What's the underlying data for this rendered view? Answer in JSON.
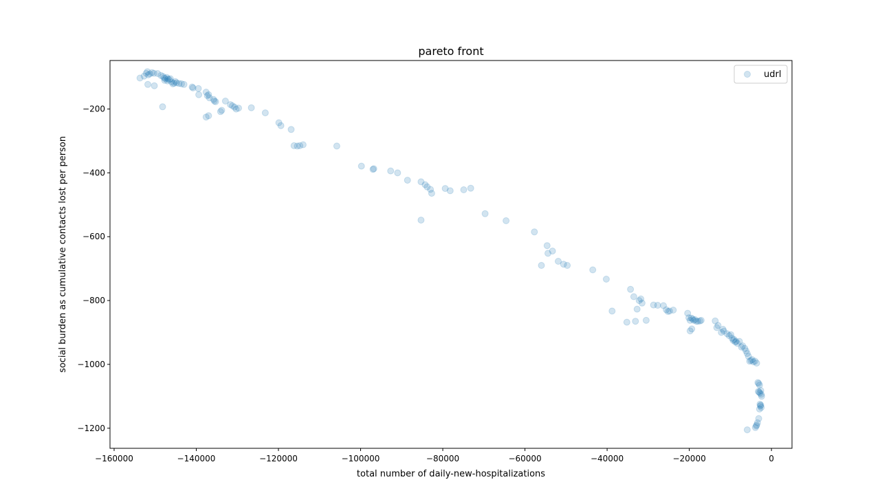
{
  "chart_data": {
    "type": "scatter",
    "title": "pareto front",
    "xlabel": "total number of daily-new-hospitalizations",
    "ylabel": "social burden as cumulative contacts lost per person",
    "xlim": [
      -161000,
      5000
    ],
    "ylim": [
      -1263,
      -48
    ],
    "xticks": [
      -160000,
      -140000,
      -120000,
      -100000,
      -80000,
      -60000,
      -40000,
      -20000,
      0
    ],
    "yticks": [
      -200,
      -400,
      -600,
      -800,
      -1000,
      -1200
    ],
    "grid": false,
    "legend": {
      "position": "top-right",
      "entries": [
        "udrl"
      ]
    },
    "series": [
      {
        "name": "udrl",
        "color": "#1f77b4",
        "alpha": 0.2,
        "points": [
          [
            -153700,
            -103
          ],
          [
            -152700,
            -97
          ],
          [
            -152200,
            -88
          ],
          [
            -151900,
            -83
          ],
          [
            -151700,
            -93
          ],
          [
            -151300,
            -90
          ],
          [
            -150800,
            -86
          ],
          [
            -150300,
            -88
          ],
          [
            -149400,
            -89
          ],
          [
            -148600,
            -95
          ],
          [
            -148100,
            -98
          ],
          [
            -147800,
            -103
          ],
          [
            -147500,
            -105
          ],
          [
            -147200,
            -101
          ],
          [
            -146900,
            -106
          ],
          [
            -146600,
            -108
          ],
          [
            -146300,
            -105
          ],
          [
            -146000,
            -115
          ],
          [
            -145700,
            -121
          ],
          [
            -145400,
            -119
          ],
          [
            -145100,
            -114
          ],
          [
            -144800,
            -118
          ],
          [
            -144200,
            -120
          ],
          [
            -143600,
            -121
          ],
          [
            -143000,
            -123
          ],
          [
            -147700,
            -110
          ],
          [
            -147000,
            -112
          ],
          [
            -151800,
            -123
          ],
          [
            -150200,
            -127
          ],
          [
            -148200,
            -193
          ],
          [
            -141000,
            -131
          ],
          [
            -140800,
            -134
          ],
          [
            -139500,
            -136
          ],
          [
            -139400,
            -155
          ],
          [
            -137600,
            -147
          ],
          [
            -137300,
            -158
          ],
          [
            -137000,
            -155
          ],
          [
            -136800,
            -165
          ],
          [
            -135800,
            -170
          ],
          [
            -135300,
            -177
          ],
          [
            -135600,
            -175
          ],
          [
            -137600,
            -225
          ],
          [
            -137000,
            -221
          ],
          [
            -134100,
            -208
          ],
          [
            -133800,
            -204
          ],
          [
            -132900,
            -175
          ],
          [
            -131700,
            -186
          ],
          [
            -131200,
            -190
          ],
          [
            -130700,
            -194
          ],
          [
            -130300,
            -200
          ],
          [
            -129700,
            -197
          ],
          [
            -126600,
            -196
          ],
          [
            -123200,
            -212
          ],
          [
            -119900,
            -243
          ],
          [
            -119400,
            -252
          ],
          [
            -116900,
            -264
          ],
          [
            -116200,
            -315
          ],
          [
            -115400,
            -316
          ],
          [
            -114800,
            -315
          ],
          [
            -114000,
            -312
          ],
          [
            -105800,
            -316
          ],
          [
            -99800,
            -379
          ],
          [
            -97000,
            -389
          ],
          [
            -96800,
            -387
          ],
          [
            -92700,
            -394
          ],
          [
            -91000,
            -400
          ],
          [
            -88600,
            -423
          ],
          [
            -85300,
            -428
          ],
          [
            -84300,
            -437
          ],
          [
            -83800,
            -444
          ],
          [
            -83000,
            -452
          ],
          [
            -82700,
            -464
          ],
          [
            -85300,
            -548
          ],
          [
            -79400,
            -449
          ],
          [
            -78200,
            -456
          ],
          [
            -74900,
            -453
          ],
          [
            -73200,
            -448
          ],
          [
            -69700,
            -528
          ],
          [
            -64600,
            -550
          ],
          [
            -57700,
            -585
          ],
          [
            -56000,
            -690
          ],
          [
            -54600,
            -628
          ],
          [
            -54400,
            -652
          ],
          [
            -53300,
            -645
          ],
          [
            -51900,
            -677
          ],
          [
            -50600,
            -686
          ],
          [
            -49700,
            -690
          ],
          [
            -43500,
            -704
          ],
          [
            -40200,
            -733
          ],
          [
            -38800,
            -833
          ],
          [
            -35200,
            -868
          ],
          [
            -34300,
            -765
          ],
          [
            -33500,
            -788
          ],
          [
            -33100,
            -865
          ],
          [
            -32700,
            -827
          ],
          [
            -32200,
            -800
          ],
          [
            -31800,
            -795
          ],
          [
            -31500,
            -808
          ],
          [
            -30500,
            -862
          ],
          [
            -28700,
            -814
          ],
          [
            -27700,
            -815
          ],
          [
            -26300,
            -816
          ],
          [
            -25600,
            -829
          ],
          [
            -25200,
            -834
          ],
          [
            -24800,
            -833
          ],
          [
            -23900,
            -830
          ],
          [
            -20400,
            -840
          ],
          [
            -20100,
            -854
          ],
          [
            -19800,
            -862
          ],
          [
            -19500,
            -855
          ],
          [
            -19200,
            -858
          ],
          [
            -18900,
            -862
          ],
          [
            -18600,
            -860
          ],
          [
            -18300,
            -865
          ],
          [
            -17900,
            -865
          ],
          [
            -17400,
            -864
          ],
          [
            -17100,
            -862
          ],
          [
            -19800,
            -895
          ],
          [
            -19400,
            -889
          ],
          [
            -13700,
            -864
          ],
          [
            -13300,
            -885
          ],
          [
            -13000,
            -878
          ],
          [
            -12200,
            -900
          ],
          [
            -11800,
            -890
          ],
          [
            -11600,
            -896
          ],
          [
            -10800,
            -904
          ],
          [
            -10300,
            -910
          ],
          [
            -9900,
            -907
          ],
          [
            -9600,
            -918
          ],
          [
            -9300,
            -925
          ],
          [
            -9100,
            -922
          ],
          [
            -8800,
            -930
          ],
          [
            -8600,
            -928
          ],
          [
            -8300,
            -934
          ],
          [
            -7800,
            -928
          ],
          [
            -7300,
            -946
          ],
          [
            -7000,
            -942
          ],
          [
            -6500,
            -950
          ],
          [
            -6200,
            -958
          ],
          [
            -5900,
            -966
          ],
          [
            -5600,
            -975
          ],
          [
            -5300,
            -990
          ],
          [
            -5000,
            -988
          ],
          [
            -4700,
            -985
          ],
          [
            -4400,
            -992
          ],
          [
            -4000,
            -990
          ],
          [
            -3600,
            -996
          ],
          [
            -3300,
            -1057
          ],
          [
            -3100,
            -1060
          ],
          [
            -2900,
            -1065
          ],
          [
            -3200,
            -1085
          ],
          [
            -3000,
            -1087
          ],
          [
            -2800,
            -1090
          ],
          [
            -2600,
            -1082
          ],
          [
            -2500,
            -1094
          ],
          [
            -2400,
            -1100
          ],
          [
            -2700,
            -1130
          ],
          [
            -2600,
            -1128
          ],
          [
            -2500,
            -1135
          ],
          [
            -2800,
            -1125
          ],
          [
            -2900,
            -1140
          ],
          [
            -3100,
            -1170
          ],
          [
            -3400,
            -1183
          ],
          [
            -3700,
            -1193
          ],
          [
            -3900,
            -1198
          ],
          [
            -5900,
            -1205
          ],
          [
            -3600,
            -1190
          ]
        ]
      }
    ]
  }
}
